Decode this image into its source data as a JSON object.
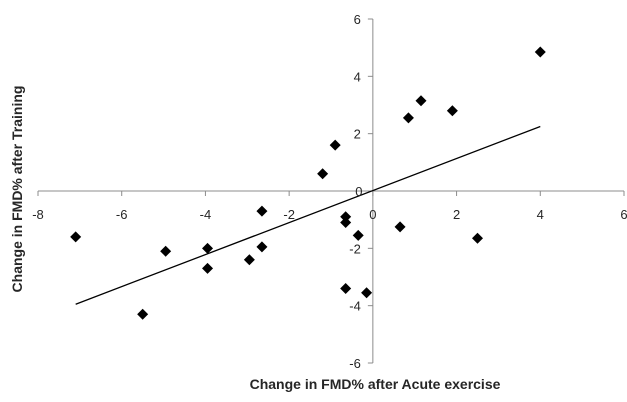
{
  "chart_data": {
    "type": "scatter",
    "xlabel": "Change in FMD% after Acute exercise",
    "ylabel": "Change in FMD% after Training",
    "xlim": [
      -8,
      6
    ],
    "ylim": [
      -6,
      6
    ],
    "xticks": [
      -8,
      -6,
      -4,
      -2,
      0,
      2,
      4,
      6
    ],
    "yticks": [
      -6,
      -4,
      -2,
      0,
      2,
      4,
      6
    ],
    "xtick_labels": [
      "-8",
      "-6",
      "-4",
      "-2",
      "0",
      "2",
      "4",
      "6"
    ],
    "ytick_labels": [
      "-6",
      "-4",
      "-2",
      "0",
      "2",
      "4",
      "6"
    ],
    "grid": false,
    "legend": "none",
    "marker": "diamond",
    "marker_color": "#000000",
    "line_color": "#000000",
    "points": [
      {
        "x": -7.1,
        "y": -1.6
      },
      {
        "x": -5.5,
        "y": -4.3
      },
      {
        "x": -4.95,
        "y": -2.1
      },
      {
        "x": -3.95,
        "y": -2.0
      },
      {
        "x": -3.95,
        "y": -2.7
      },
      {
        "x": -2.95,
        "y": -2.4
      },
      {
        "x": -2.65,
        "y": -0.7
      },
      {
        "x": -2.65,
        "y": -1.95
      },
      {
        "x": -1.2,
        "y": 0.6
      },
      {
        "x": -0.9,
        "y": 1.6
      },
      {
        "x": -0.65,
        "y": -0.9
      },
      {
        "x": -0.65,
        "y": -1.1
      },
      {
        "x": -0.65,
        "y": -3.4
      },
      {
        "x": -0.35,
        "y": -1.55
      },
      {
        "x": -0.15,
        "y": -3.55
      },
      {
        "x": 0.65,
        "y": -1.25
      },
      {
        "x": 0.85,
        "y": 2.55
      },
      {
        "x": 1.15,
        "y": 3.15
      },
      {
        "x": 1.9,
        "y": 2.8
      },
      {
        "x": 2.5,
        "y": -1.65
      },
      {
        "x": 4.0,
        "y": 4.85
      }
    ],
    "trendline": {
      "x1": -7.1,
      "y1": -3.95,
      "x2": 4.0,
      "y2": 2.25
    }
  }
}
